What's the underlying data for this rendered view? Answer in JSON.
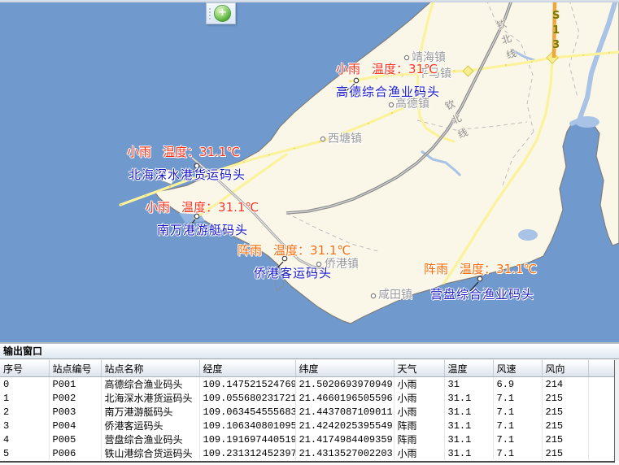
{
  "toolbar": {
    "add_label": "+"
  },
  "map": {
    "s13_label": "S13",
    "railway_label": "钦北线",
    "temp_prefix": "温度：",
    "places": [
      {
        "name": "靖海镇"
      },
      {
        "name": "平马镇"
      },
      {
        "name": "高德镇"
      },
      {
        "name": "西塘镇"
      },
      {
        "name": "侨港镇"
      },
      {
        "name": "咸田镇"
      }
    ],
    "stations": [
      {
        "condition": "小雨",
        "temperature": "31℃",
        "name": "高德综合渔业码头"
      },
      {
        "condition": "小雨",
        "temperature": "31.1℃",
        "name": "北海深水港货运码头"
      },
      {
        "condition": "小雨",
        "temperature": "31.1℃",
        "name": "南万港游艇码头"
      },
      {
        "condition": "阵雨",
        "temperature": "31.1℃",
        "name": "侨港客运码头"
      },
      {
        "condition": "阵雨",
        "temperature": "31.1℃",
        "name": "营盘综合渔业码头"
      }
    ]
  },
  "output_panel": {
    "title": "输出窗口",
    "columns": [
      "序号",
      "站点编号",
      "站点名称",
      "经度",
      "纬度",
      "天气",
      "温度",
      "风速",
      "风向",
      ""
    ],
    "rows": [
      [
        "0",
        "P001",
        "高德综合渔业码头",
        "109.147521524769",
        "21.5020693970949",
        "小雨",
        "31",
        "6.9",
        "214",
        ""
      ],
      [
        "1",
        "P002",
        "北海深水港货运码头",
        "109.055680231721",
        "21.4660196505596",
        "小雨",
        "31.1",
        "7.1",
        "215",
        ""
      ],
      [
        "2",
        "P003",
        "南万港游艇码头",
        "109.063454555683",
        "21.4437087109011",
        "小雨",
        "31.1",
        "7.1",
        "215",
        ""
      ],
      [
        "3",
        "P004",
        "侨港客运码头",
        "109.106340801095",
        "21.4242025395549",
        "阵雨",
        "31.1",
        "7.1",
        "215",
        ""
      ],
      [
        "4",
        "P005",
        "营盘综合渔业码头",
        "109.191697440519",
        "21.4174984409359",
        "阵雨",
        "31.1",
        "7.1",
        "215",
        ""
      ],
      [
        "5",
        "P006",
        "铁山港综合货运码头",
        "109.231312452397",
        "21.4313527002203",
        "小雨",
        "31.1",
        "7.1",
        "215",
        ""
      ]
    ]
  },
  "colors": {
    "sea": "#7099CD",
    "land": "#FBF7E8",
    "light_water": "#A8C3E6",
    "road_yellow": "#FBF39B",
    "highway_orange": "#EFA63A",
    "light_rain_label": "#FF3118",
    "shower_label": "#FF6A00",
    "dock_label": "#1717C9",
    "place_label": "#9A9A9A"
  }
}
